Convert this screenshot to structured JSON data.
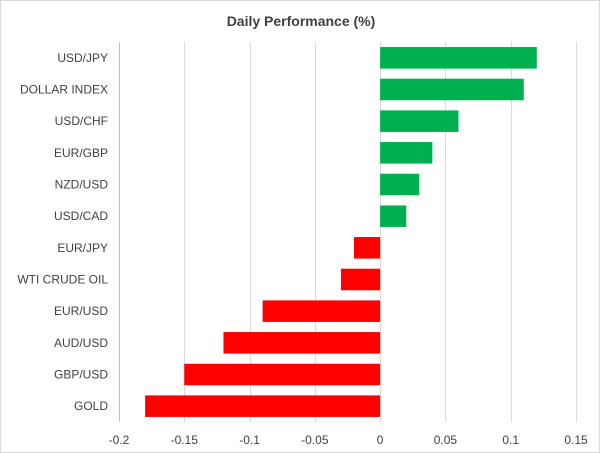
{
  "chart_data": {
    "type": "bar",
    "orientation": "horizontal",
    "title": "Daily Performance (%)",
    "xlabel": "",
    "ylabel": "",
    "xlim": [
      -0.2,
      0.15
    ],
    "xticks": [
      -0.2,
      -0.15,
      -0.1,
      -0.05,
      0,
      0.05,
      0.1,
      0.15
    ],
    "xtick_labels": [
      "-0.2",
      "-0.15",
      "-0.1",
      "-0.05",
      "0",
      "0.05",
      "0.1",
      "0.15"
    ],
    "categories": [
      "USD/JPY",
      "DOLLAR INDEX",
      "USD/CHF",
      "EUR/GBP",
      "NZD/USD",
      "USD/CAD",
      "EUR/JPY",
      "WTI CRUDE OIL",
      "EUR/USD",
      "AUD/USD",
      "GBP/USD",
      "GOLD"
    ],
    "values": [
      0.12,
      0.11,
      0.06,
      0.04,
      0.03,
      0.02,
      -0.02,
      -0.03,
      -0.09,
      -0.12,
      -0.15,
      -0.18
    ],
    "colors": {
      "positive": "#00b050",
      "negative": "#ff0000"
    },
    "grid": true,
    "legend": "none"
  }
}
